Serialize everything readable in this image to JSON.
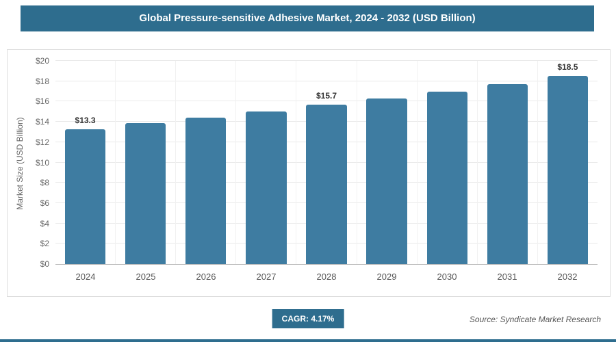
{
  "header": {
    "title": "Global Pressure-sensitive Adhesive Market, 2024 - 2032 (USD Billion)"
  },
  "chart_data": {
    "type": "bar",
    "title": "Global Pressure-sensitive Adhesive Market, 2024 - 2032 (USD Billion)",
    "categories": [
      "2024",
      "2025",
      "2026",
      "2027",
      "2028",
      "2029",
      "2030",
      "2031",
      "2032"
    ],
    "values": [
      13.3,
      13.9,
      14.4,
      15.0,
      15.7,
      16.3,
      17.0,
      17.7,
      18.5
    ],
    "data_labels": [
      "$13.3",
      "",
      "",
      "",
      "$15.7",
      "",
      "",
      "",
      "$18.5"
    ],
    "xlabel": "",
    "ylabel": "Market Size (USD Billion)",
    "ylim": [
      0,
      20
    ],
    "ytick_step": 2,
    "ytick_prefix": "$",
    "grid": true,
    "legend": false,
    "bar_color": "#3e7ca1"
  },
  "footer": {
    "cagr_label": "CAGR: 4.17%",
    "source": "Source: Syndicate Market Research"
  },
  "colors": {
    "accent": "#2e6d8e",
    "bar": "#3e7ca1",
    "gridline": "#e9e9e9"
  }
}
